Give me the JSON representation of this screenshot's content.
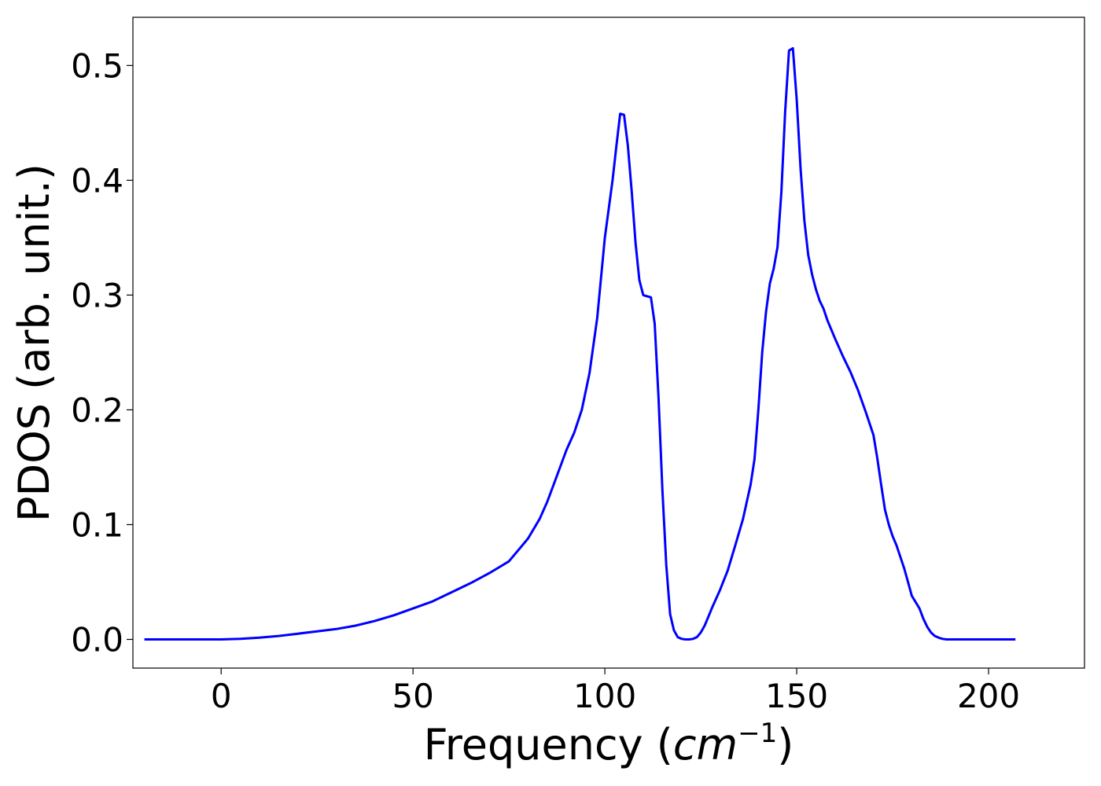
{
  "chart_data": {
    "type": "line",
    "xlabel": "Frequency ",
    "xlabel_unit": "cm",
    "xlabel_unit_exp": "−1",
    "ylabel": "PDOS (arb. unit.)",
    "xlim": [
      -23,
      225
    ],
    "ylim": [
      -0.025,
      0.542
    ],
    "xticks": [
      0,
      50,
      100,
      150,
      200
    ],
    "yticks": [
      0.0,
      0.1,
      0.2,
      0.3,
      0.4,
      0.5
    ],
    "xtick_labels": [
      "0",
      "50",
      "100",
      "150",
      "200"
    ],
    "ytick_labels": [
      "0.0",
      "0.1",
      "0.2",
      "0.3",
      "0.4",
      "0.5"
    ],
    "grid": false,
    "series": [
      {
        "color": "#0000ff",
        "x": [
          -20,
          0,
          5,
          10,
          15,
          20,
          25,
          30,
          35,
          40,
          45,
          50,
          55,
          60,
          65,
          70,
          72,
          75,
          78,
          80,
          83,
          85,
          87,
          90,
          92,
          94,
          96,
          98,
          100,
          102,
          103,
          104,
          105,
          106,
          107,
          108,
          109,
          110,
          111,
          112,
          113,
          114,
          115,
          116,
          117,
          118,
          119,
          120,
          121,
          122,
          123,
          124,
          125,
          126,
          127,
          128,
          130,
          132,
          134,
          136,
          138,
          139,
          140,
          141,
          142,
          143,
          144,
          145,
          146,
          147,
          148,
          149,
          150,
          151,
          152,
          153,
          154,
          155,
          156,
          157,
          158,
          160,
          162,
          164,
          166,
          168,
          170,
          171,
          172,
          173,
          174,
          175,
          176,
          177,
          178,
          179,
          180,
          182,
          183,
          184,
          185,
          186,
          187,
          188,
          189,
          190,
          191,
          192,
          195,
          200,
          207
        ],
        "y": [
          0.0,
          0.0,
          0.0005,
          0.0015,
          0.003,
          0.005,
          0.007,
          0.009,
          0.012,
          0.016,
          0.021,
          0.027,
          0.033,
          0.041,
          0.049,
          0.058,
          0.062,
          0.068,
          0.08,
          0.088,
          0.105,
          0.12,
          0.138,
          0.165,
          0.18,
          0.2,
          0.232,
          0.28,
          0.35,
          0.4,
          0.43,
          0.458,
          0.457,
          0.43,
          0.39,
          0.345,
          0.313,
          0.3,
          0.299,
          0.298,
          0.275,
          0.21,
          0.13,
          0.065,
          0.022,
          0.008,
          0.002,
          0.0005,
          0.0,
          0.0,
          0.0005,
          0.002,
          0.006,
          0.012,
          0.02,
          0.028,
          0.043,
          0.06,
          0.082,
          0.105,
          0.135,
          0.157,
          0.2,
          0.25,
          0.285,
          0.31,
          0.323,
          0.342,
          0.39,
          0.46,
          0.513,
          0.515,
          0.47,
          0.41,
          0.365,
          0.335,
          0.318,
          0.305,
          0.295,
          0.288,
          0.278,
          0.262,
          0.247,
          0.233,
          0.217,
          0.198,
          0.178,
          0.158,
          0.135,
          0.113,
          0.1,
          0.09,
          0.082,
          0.072,
          0.062,
          0.05,
          0.038,
          0.027,
          0.018,
          0.011,
          0.006,
          0.003,
          0.0015,
          0.0005,
          0.0,
          0.0,
          0.0,
          0.0,
          0.0,
          0.0,
          0.0
        ]
      }
    ]
  }
}
